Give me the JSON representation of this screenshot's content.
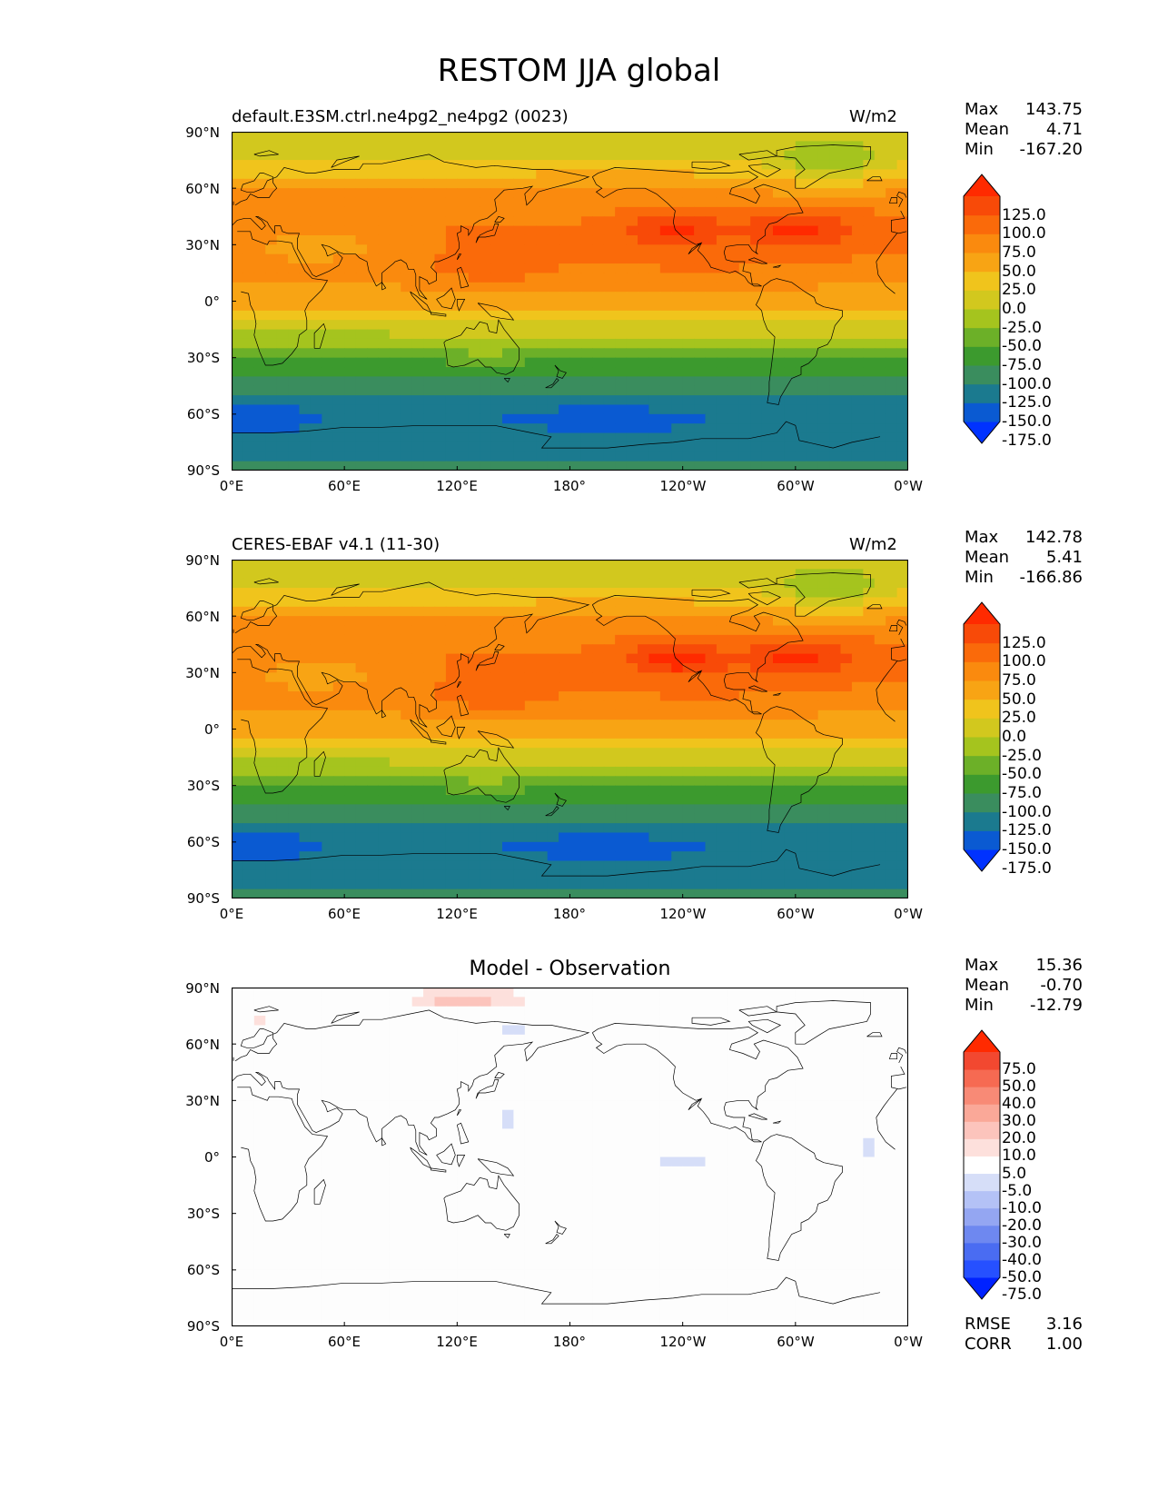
{
  "figure": {
    "title": "RESTOM JJA global"
  },
  "panels": [
    {
      "left_title": "default.E3SM.ctrl.ne4pg2_ne4pg2 (0023)",
      "right_title": "W/m2",
      "center_title": "",
      "stats": [
        {
          "label": "Max",
          "value": "143.75"
        },
        {
          "label": "Mean",
          "value": "4.71"
        },
        {
          "label": "Min",
          "value": "-167.20"
        }
      ],
      "colorbar_labels": [
        "125.0",
        "100.0",
        "75.0",
        "50.0",
        "25.0",
        "0.0",
        "-25.0",
        "-50.0",
        "-75.0",
        "-100.0",
        "-125.0",
        "-150.0",
        "-175.0"
      ],
      "colorbar_colors": [
        "#0032ff",
        "#0a5ad2",
        "#1b7a8f",
        "#3a8d5e",
        "#3c9a2e",
        "#6cb028",
        "#a5c41e",
        "#d2c81e",
        "#f0c41c",
        "#f8a414",
        "#fa8a0e",
        "#fa6a0a",
        "#f84a08",
        "#ff2a00"
      ]
    },
    {
      "left_title": "CERES-EBAF v4.1 (11-30)",
      "right_title": "W/m2",
      "center_title": "",
      "stats": [
        {
          "label": "Max",
          "value": "142.78"
        },
        {
          "label": "Mean",
          "value": "5.41"
        },
        {
          "label": "Min",
          "value": "-166.86"
        }
      ],
      "colorbar_labels": [
        "125.0",
        "100.0",
        "75.0",
        "50.0",
        "25.0",
        "0.0",
        "-25.0",
        "-50.0",
        "-75.0",
        "-100.0",
        "-125.0",
        "-150.0",
        "-175.0"
      ],
      "colorbar_colors": [
        "#0032ff",
        "#0a5ad2",
        "#1b7a8f",
        "#3a8d5e",
        "#3c9a2e",
        "#6cb028",
        "#a5c41e",
        "#d2c81e",
        "#f0c41c",
        "#f8a414",
        "#fa8a0e",
        "#fa6a0a",
        "#f84a08",
        "#ff2a00"
      ]
    },
    {
      "left_title": "",
      "right_title": "",
      "center_title": "Model - Observation",
      "stats": [
        {
          "label": "Max",
          "value": "15.36"
        },
        {
          "label": "Mean",
          "value": "-0.70"
        },
        {
          "label": "Min",
          "value": "-12.79"
        }
      ],
      "colorbar_labels": [
        "75.0",
        "50.0",
        "40.0",
        "30.0",
        "20.0",
        "10.0",
        "5.0",
        "-5.0",
        "-10.0",
        "-20.0",
        "-30.0",
        "-40.0",
        "-50.0",
        "-75.0"
      ],
      "colorbar_colors": [
        "#0022ff",
        "#2650ff",
        "#4a6cf2",
        "#6e88f0",
        "#94a6f2",
        "#b4c2f6",
        "#d6def8",
        "#ffffff",
        "#fde0dc",
        "#fcc4bc",
        "#faa898",
        "#f88a76",
        "#f66a52",
        "#f24830",
        "#ff2a00"
      ],
      "extra_stats": [
        {
          "label": "RMSE",
          "value": "3.16"
        },
        {
          "label": "CORR",
          "value": "1.00"
        }
      ]
    }
  ],
  "axes": {
    "lat_ticks": [
      "90°N",
      "60°N",
      "30°N",
      "0°",
      "30°S",
      "60°S",
      "90°S"
    ],
    "lon_ticks": [
      "0°E",
      "60°E",
      "120°E",
      "180°",
      "120°W",
      "60°W",
      "0°W"
    ]
  },
  "chart_data": [
    {
      "type": "heatmap",
      "title": "default.E3SM.ctrl.ne4pg2_ne4pg2 (0023)",
      "units": "W/m2",
      "xlim": [
        0,
        360
      ],
      "ylim": [
        -90,
        90
      ],
      "zonal_profile": {
        "lat": [
          85,
          65,
          45,
          30,
          15,
          0,
          -15,
          -30,
          -45,
          -60,
          -80
        ],
        "value": [
          -5,
          40,
          75,
          80,
          70,
          30,
          -15,
          -70,
          -110,
          -150,
          -130
        ]
      },
      "max": 143.75,
      "mean": 4.71,
      "min": -167.2
    },
    {
      "type": "heatmap",
      "title": "CERES-EBAF v4.1 (11-30)",
      "units": "W/m2",
      "xlim": [
        0,
        360
      ],
      "ylim": [
        -90,
        90
      ],
      "zonal_profile": {
        "lat": [
          85,
          65,
          45,
          30,
          15,
          0,
          -15,
          -30,
          -45,
          -60,
          -80
        ],
        "value": [
          -5,
          42,
          78,
          82,
          72,
          32,
          -12,
          -68,
          -108,
          -148,
          -130
        ]
      },
      "max": 142.78,
      "mean": 5.41,
      "min": -166.86
    },
    {
      "type": "heatmap",
      "title": "Model - Observation",
      "xlim": [
        0,
        360
      ],
      "ylim": [
        -90,
        90
      ],
      "max": 15.36,
      "mean": -0.7,
      "min": -12.79,
      "rmse": 3.16,
      "corr": 1.0
    }
  ]
}
